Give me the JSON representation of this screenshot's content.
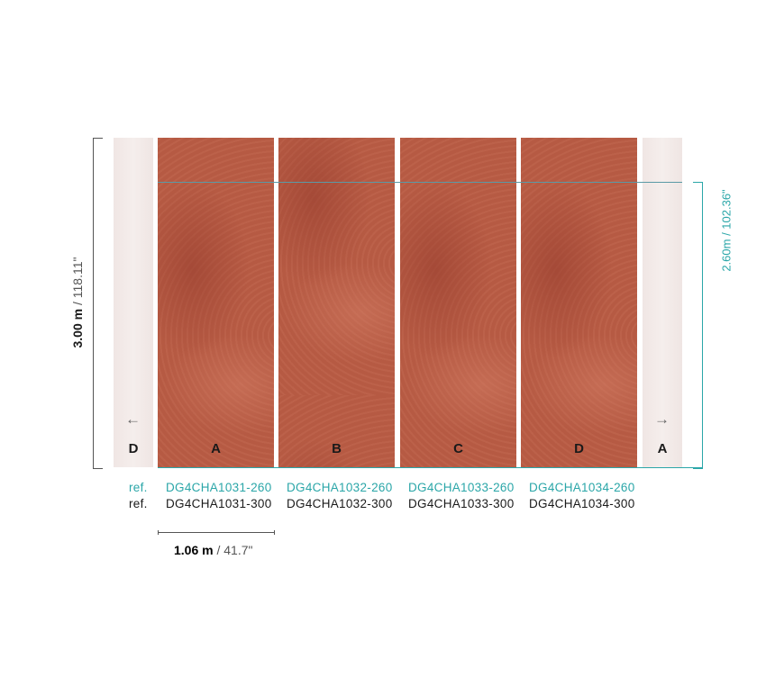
{
  "height_label": {
    "metric": "3.00 m",
    "imperial": "/ 118.11\""
  },
  "inner_height_label": {
    "text": "2.60m / 102.36\""
  },
  "width_label": {
    "metric": "1.06 m",
    "imperial": "/ 41.7\""
  },
  "edge_left": {
    "letter": "D",
    "icon": "arrow-left-icon"
  },
  "edge_right": {
    "letter": "A",
    "icon": "arrow-right-icon"
  },
  "ref_labels": {
    "ref_260": "ref.",
    "ref_300": "ref."
  },
  "panels": [
    {
      "letter": "A",
      "ref_260": "DG4CHA1031-260",
      "ref_300": "DG4CHA1031-300"
    },
    {
      "letter": "B",
      "ref_260": "DG4CHA1032-260",
      "ref_300": "DG4CHA1032-300"
    },
    {
      "letter": "C",
      "ref_260": "DG4CHA1033-260",
      "ref_300": "DG4CHA1033-300"
    },
    {
      "letter": "D",
      "ref_260": "DG4CHA1034-260",
      "ref_300": "DG4CHA1034-300"
    }
  ],
  "colors": {
    "accent": "#2aa6a8",
    "panel": "#b65a43",
    "edge": "#f2e9e7"
  }
}
